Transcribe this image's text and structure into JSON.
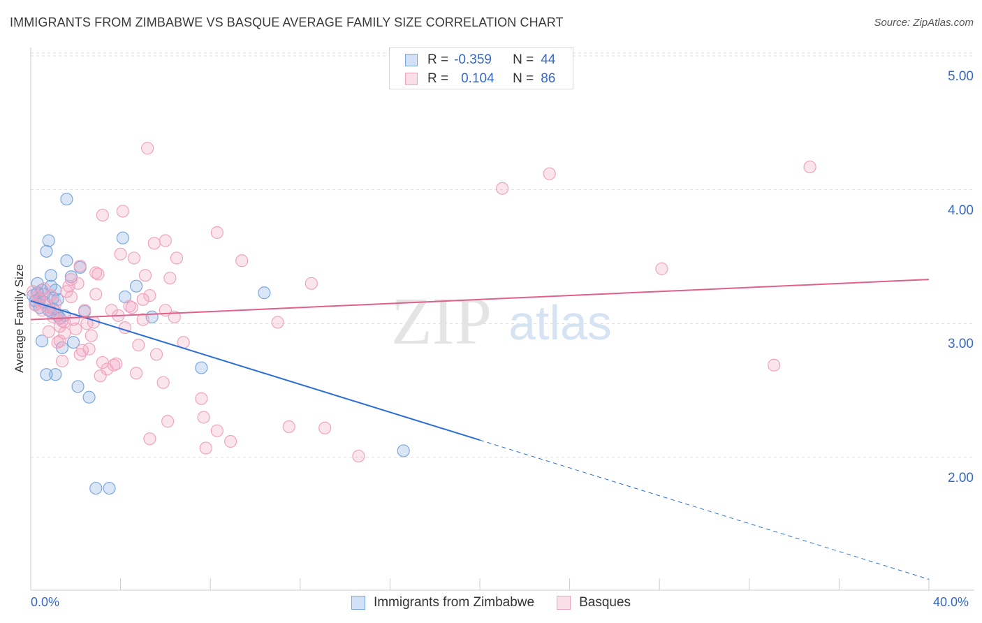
{
  "header": {
    "title": "IMMIGRANTS FROM ZIMBABWE VS BASQUE AVERAGE FAMILY SIZE CORRELATION CHART",
    "source": "Source: ZipAtlas.com"
  },
  "watermark": {
    "zip": "ZIP",
    "atlas": "atlas"
  },
  "legend_top": {
    "rows": [
      {
        "r_label": "R =",
        "r_value": "-0.359",
        "n_label": "N =",
        "n_value": "44",
        "color": "#7aa7e0"
      },
      {
        "r_label": "R =",
        "r_value": "0.104",
        "n_label": "N =",
        "n_value": "86",
        "color": "#f1a3bd"
      }
    ]
  },
  "chart_data": {
    "type": "scatter",
    "ylabel": "Average Family Size",
    "xlim": [
      0,
      40
    ],
    "ylim": [
      1.0,
      5.15
    ],
    "x_tick_labels": {
      "min": "0.0%",
      "max": "40.0%"
    },
    "y_ticks": [
      {
        "value": 2.0,
        "label": "2.00"
      },
      {
        "value": 3.0,
        "label": "3.00"
      },
      {
        "value": 4.0,
        "label": "4.00"
      },
      {
        "value": 5.0,
        "label": "5.00"
      }
    ],
    "grid": "horizontal dashed",
    "series": [
      {
        "name": "Immigrants from Zimbabwe",
        "color": "#7aa7e0",
        "fill": "rgba(122,167,224,0.28)",
        "line_color": "#2b6fd6",
        "trend": {
          "x0": 0.0,
          "y0": 3.17,
          "x1": 20.0,
          "y1": 2.13,
          "dashed_to_x": 40.0,
          "dashed_to_y": 1.09
        },
        "points": [
          [
            0.1,
            3.21
          ],
          [
            0.2,
            3.17
          ],
          [
            0.2,
            3.14
          ],
          [
            0.3,
            3.23
          ],
          [
            0.4,
            3.19
          ],
          [
            0.4,
            3.12
          ],
          [
            0.5,
            3.25
          ],
          [
            0.5,
            2.87
          ],
          [
            0.6,
            3.22
          ],
          [
            0.7,
            3.54
          ],
          [
            0.7,
            2.62
          ],
          [
            0.8,
            3.62
          ],
          [
            0.8,
            3.1
          ],
          [
            0.9,
            3.36
          ],
          [
            0.9,
            3.28
          ],
          [
            1.0,
            3.19
          ],
          [
            1.0,
            3.11
          ],
          [
            1.1,
            3.25
          ],
          [
            1.1,
            2.62
          ],
          [
            1.2,
            3.06
          ],
          [
            1.3,
            3.04
          ],
          [
            1.4,
            2.82
          ],
          [
            1.5,
            3.06
          ],
          [
            1.6,
            3.93
          ],
          [
            1.6,
            3.47
          ],
          [
            1.8,
            3.35
          ],
          [
            1.9,
            2.86
          ],
          [
            2.1,
            2.53
          ],
          [
            2.2,
            3.42
          ],
          [
            2.4,
            3.09
          ],
          [
            2.6,
            2.45
          ],
          [
            2.9,
            1.77
          ],
          [
            3.5,
            1.77
          ],
          [
            4.1,
            3.64
          ],
          [
            4.2,
            3.2
          ],
          [
            4.7,
            3.28
          ],
          [
            5.4,
            3.05
          ],
          [
            7.6,
            2.67
          ],
          [
            10.4,
            3.23
          ],
          [
            16.6,
            2.05
          ],
          [
            0.3,
            3.3
          ],
          [
            0.6,
            3.16
          ],
          [
            1.2,
            3.18
          ],
          [
            0.9,
            3.09
          ]
        ]
      },
      {
        "name": "Basques",
        "color": "#f1a3bd",
        "fill": "rgba(241,163,189,0.28)",
        "line_color": "#e0608a",
        "trend": {
          "x0": 0.0,
          "y0": 3.03,
          "x1": 40.0,
          "y1": 3.33
        },
        "points": [
          [
            0.1,
            3.24
          ],
          [
            0.3,
            3.2
          ],
          [
            0.4,
            3.17
          ],
          [
            0.5,
            3.1
          ],
          [
            0.6,
            3.26
          ],
          [
            0.7,
            3.13
          ],
          [
            0.8,
            2.94
          ],
          [
            0.9,
            3.21
          ],
          [
            1.0,
            3.05
          ],
          [
            1.1,
            3.15
          ],
          [
            1.2,
            2.86
          ],
          [
            1.3,
            2.98
          ],
          [
            1.4,
            3.02
          ],
          [
            1.4,
            2.72
          ],
          [
            1.5,
            3.01
          ],
          [
            1.6,
            3.24
          ],
          [
            1.7,
            3.28
          ],
          [
            1.8,
            3.33
          ],
          [
            1.8,
            3.2
          ],
          [
            1.9,
            3.03
          ],
          [
            2.0,
            2.96
          ],
          [
            2.1,
            3.3
          ],
          [
            2.2,
            3.43
          ],
          [
            2.3,
            2.8
          ],
          [
            2.4,
            3.1
          ],
          [
            2.5,
            3.0
          ],
          [
            2.6,
            2.81
          ],
          [
            2.7,
            2.91
          ],
          [
            2.8,
            3.01
          ],
          [
            2.9,
            3.22
          ],
          [
            3.0,
            3.37
          ],
          [
            3.2,
            2.71
          ],
          [
            3.4,
            2.66
          ],
          [
            3.6,
            3.1
          ],
          [
            3.7,
            2.69
          ],
          [
            3.8,
            2.7
          ],
          [
            3.9,
            3.06
          ],
          [
            4.0,
            3.52
          ],
          [
            4.1,
            3.84
          ],
          [
            4.2,
            2.97
          ],
          [
            4.4,
            3.13
          ],
          [
            4.6,
            3.49
          ],
          [
            4.7,
            2.63
          ],
          [
            4.8,
            2.84
          ],
          [
            5.0,
            3.18
          ],
          [
            5.0,
            3.03
          ],
          [
            5.1,
            3.36
          ],
          [
            5.3,
            3.21
          ],
          [
            5.5,
            3.6
          ],
          [
            5.6,
            2.77
          ],
          [
            5.9,
            2.56
          ],
          [
            6.0,
            3.62
          ],
          [
            6.0,
            3.1
          ],
          [
            6.1,
            2.27
          ],
          [
            6.2,
            3.34
          ],
          [
            6.5,
            3.49
          ],
          [
            6.8,
            2.86
          ],
          [
            7.6,
            2.44
          ],
          [
            7.7,
            2.3
          ],
          [
            7.8,
            2.07
          ],
          [
            8.3,
            3.68
          ],
          [
            8.3,
            2.2
          ],
          [
            8.9,
            2.12
          ],
          [
            9.4,
            3.47
          ],
          [
            11.0,
            3.01
          ],
          [
            11.5,
            2.23
          ],
          [
            12.5,
            3.3
          ],
          [
            13.1,
            2.22
          ],
          [
            14.6,
            2.01
          ],
          [
            5.2,
            4.31
          ],
          [
            3.2,
            3.81
          ],
          [
            21.0,
            4.01
          ],
          [
            23.1,
            4.12
          ],
          [
            28.1,
            3.41
          ],
          [
            33.1,
            2.69
          ],
          [
            34.7,
            4.17
          ],
          [
            5.3,
            2.14
          ],
          [
            2.9,
            3.38
          ],
          [
            1.3,
            2.87
          ],
          [
            0.2,
            3.14
          ],
          [
            1.1,
            3.09
          ],
          [
            1.5,
            2.93
          ],
          [
            2.2,
            2.77
          ],
          [
            3.1,
            2.61
          ],
          [
            4.5,
            3.12
          ],
          [
            6.4,
            3.05
          ]
        ]
      }
    ]
  }
}
